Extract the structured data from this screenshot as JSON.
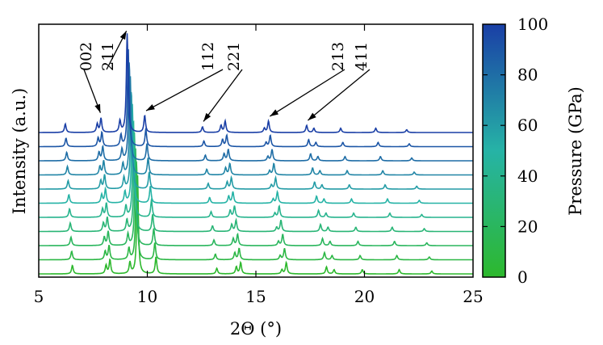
{
  "chart_data": {
    "type": "line",
    "title": "",
    "xlabel": "2Θ (°)",
    "ylabel": "Intensity (a.u.)",
    "colorbar_label": "Pressure (GPa)",
    "xlim": [
      5,
      25
    ],
    "xticks": [
      "5",
      "10",
      "15",
      "20",
      "25"
    ],
    "colorbar_range": [
      0,
      100
    ],
    "colorbar_ticks": [
      "0",
      "20",
      "40",
      "60",
      "80",
      "100"
    ],
    "colormap": [
      "#2db82d",
      "#26b3a6",
      "#1a3fa6"
    ],
    "pressures": [
      0,
      10,
      20,
      30,
      40,
      50,
      60,
      70,
      80,
      90,
      100
    ],
    "trace_offset": 1,
    "peak_positions_at_0_gpa": [
      6.55,
      8.1,
      8.28,
      9.2,
      9.55,
      10.4,
      13.2,
      14.1,
      14.3,
      16.2,
      16.4,
      18.25,
      18.6,
      19.9,
      21.6,
      23.1
    ],
    "peak_heights": [
      0.6,
      0.6,
      1.0,
      0.8,
      7.0,
      1.2,
      0.4,
      0.5,
      0.8,
      0.3,
      0.8,
      0.5,
      0.3,
      0.3,
      0.3,
      0.2
    ],
    "peak_shift_factor_at_100_gpa": 0.95,
    "annotations": [
      {
        "text": "002",
        "peak_index": 2
      },
      {
        "text": "211",
        "peak_index": 4
      },
      {
        "text": "112",
        "peak_index": 5
      },
      {
        "text": "221",
        "peak_index": 6
      },
      {
        "text": "213",
        "peak_index": 10
      },
      {
        "text": "411",
        "peak_index": 11
      }
    ]
  }
}
